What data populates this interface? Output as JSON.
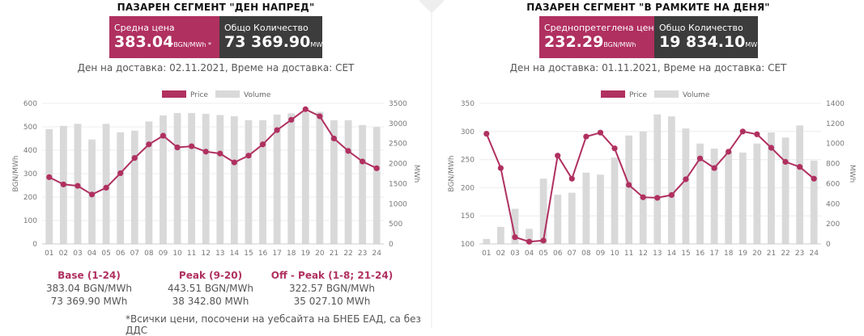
{
  "left": {
    "title": "ПАЗАРЕН СЕГМЕНТ \"ДЕН НАПРЕД\"",
    "price_label": "Средна цена",
    "price_value": "383.04",
    "price_unit": "BGN/MWh *",
    "qty_label": "Общо Количество",
    "qty_value": "73 369.90",
    "qty_unit": "MWh",
    "delivery": "Ден на доставка: 02.11.2021, Време на доставка: CET",
    "stats": [
      {
        "title": "Base (1-24)",
        "price": "383.04 BGN/MWh",
        "qty": "73 369.90 MWh"
      },
      {
        "title": "Peak (9-20)",
        "price": "443.51 BGN/MWh",
        "qty": "38 342.80 MWh"
      },
      {
        "title": "Off - Peak (1-8; 21-24)",
        "price": "322.57 BGN/MWh",
        "qty": "35 027.10 MWh"
      }
    ],
    "footnote": "*Всички цени, посочени на уебсайта на БНЕБ ЕАД, са без ДДС"
  },
  "right": {
    "title": "ПАЗАРЕН СЕГМЕНТ \"В РАМКИТЕ НА ДЕНЯ\"",
    "price_label": "Среднопретеглена цена",
    "price_value": "232.29",
    "price_unit": "BGN/MWh",
    "qty_label": "Общо Количество",
    "qty_value": "19 834.10",
    "qty_unit": "MWh",
    "delivery": "Ден на доставка: 01.11.2021, Време на доставка: CET"
  },
  "colors": {
    "price": "#b03060",
    "volume": "#d9d9d9",
    "qty_box": "#3c3c3c"
  },
  "chart_data": [
    {
      "type": "bar+line",
      "legend": [
        "Price",
        "Volume"
      ],
      "categories": [
        "01",
        "02",
        "03",
        "04",
        "05",
        "06",
        "07",
        "08",
        "09",
        "10",
        "11",
        "12",
        "13",
        "14",
        "15",
        "16",
        "17",
        "18",
        "19",
        "20",
        "21",
        "22",
        "23",
        "24"
      ],
      "ylabel": "BGN/MWh",
      "y2label": "MWh",
      "ylim": [
        0,
        600
      ],
      "y2lim": [
        0,
        3500
      ],
      "yticks": [
        0,
        100,
        200,
        300,
        400,
        500,
        600
      ],
      "y2ticks": [
        0,
        500,
        1000,
        1500,
        2000,
        2500,
        3000,
        3500
      ],
      "series": [
        {
          "name": "Price",
          "values": [
            285,
            254,
            248,
            211,
            240,
            302,
            367,
            425,
            462,
            412,
            417,
            394,
            386,
            348,
            377,
            425,
            486,
            530,
            575,
            545,
            450,
            397,
            352,
            323
          ]
        },
        {
          "name": "Volume",
          "values": [
            2860,
            2940,
            2990,
            2600,
            2990,
            2780,
            2820,
            3050,
            3200,
            3260,
            3260,
            3240,
            3210,
            3180,
            3080,
            3080,
            3220,
            3250,
            3280,
            3290,
            3080,
            3080,
            2960,
            2910
          ]
        }
      ]
    },
    {
      "type": "bar+line",
      "legend": [
        "Price",
        "Volume"
      ],
      "categories": [
        "01",
        "02",
        "03",
        "04",
        "05",
        "06",
        "07",
        "08",
        "09",
        "10",
        "11",
        "12",
        "13",
        "14",
        "15",
        "16",
        "17",
        "18",
        "19",
        "20",
        "21",
        "22",
        "23",
        "24"
      ],
      "ylabel": "BGN/MWh",
      "y2label": "MWh",
      "ylim": [
        100,
        350
      ],
      "y2lim": [
        0,
        1400
      ],
      "yticks": [
        100,
        150,
        200,
        250,
        300,
        350
      ],
      "y2ticks": [
        0,
        200,
        400,
        600,
        800,
        1000,
        1200,
        1400
      ],
      "series": [
        {
          "name": "Price",
          "values": [
            296,
            235,
            112,
            104,
            106,
            257,
            216,
            291,
            298,
            270,
            205,
            183,
            182,
            187,
            215,
            252,
            235,
            264,
            300,
            295,
            271,
            246,
            237,
            216
          ]
        },
        {
          "name": "Volume",
          "values": [
            50,
            170,
            350,
            150,
            650,
            490,
            510,
            710,
            690,
            860,
            1080,
            1120,
            1290,
            1270,
            1150,
            1000,
            950,
            920,
            910,
            1000,
            1110,
            1060,
            1180,
            830
          ]
        }
      ]
    }
  ]
}
